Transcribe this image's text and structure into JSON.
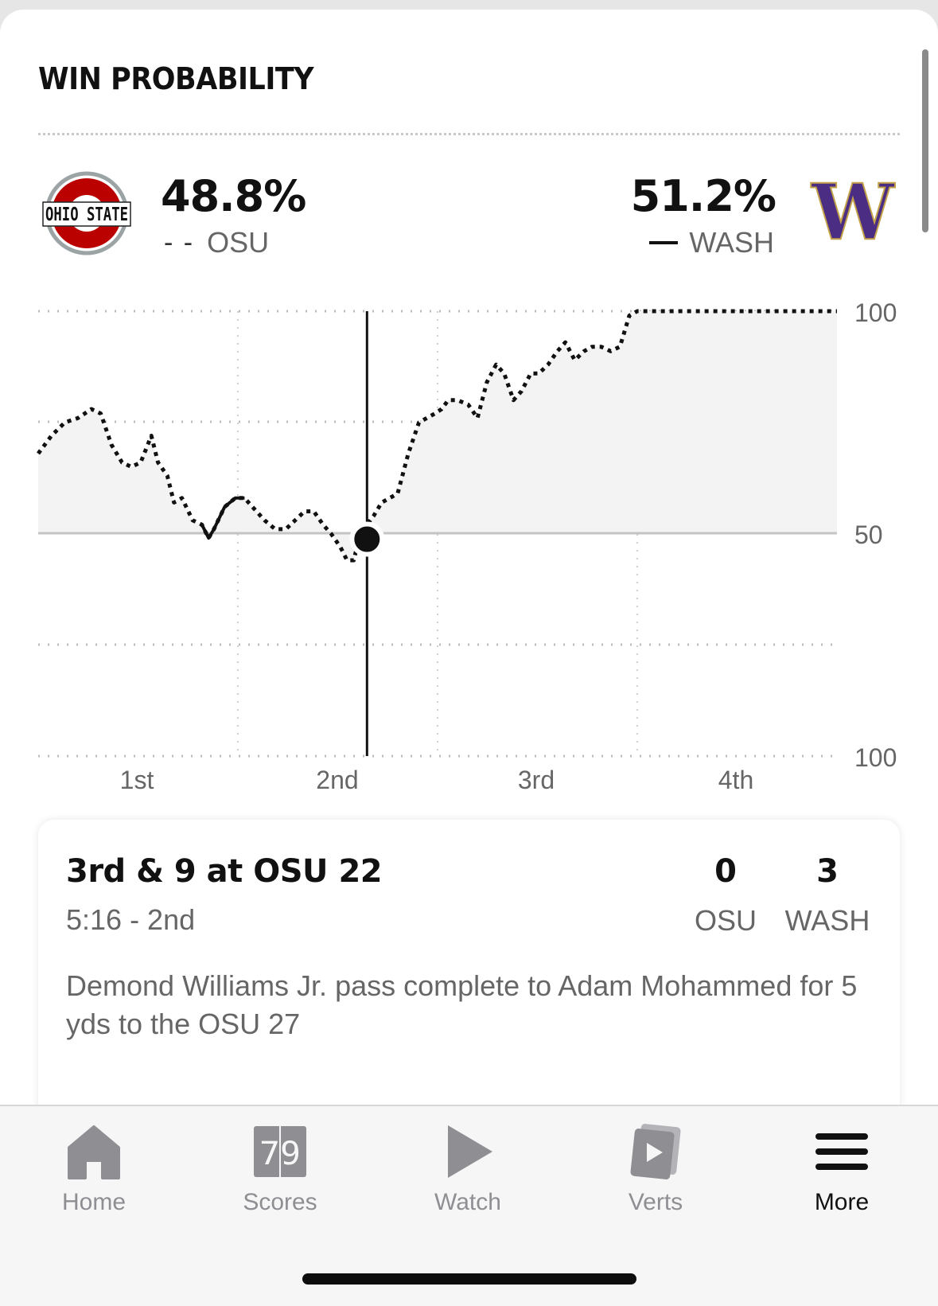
{
  "section": {
    "title": "WIN PROBABILITY"
  },
  "teams": {
    "home": {
      "abbr": "OSU",
      "pct": "48.8%",
      "line_style": "dashed",
      "logo_text": "OHIO STATE",
      "color": "#bb0000"
    },
    "away": {
      "abbr": "WASH",
      "pct": "51.2%",
      "line_style": "solid",
      "logo_text": "W",
      "color": "#4b2e83"
    }
  },
  "chart_data": {
    "type": "line",
    "title": "",
    "xlabel": "",
    "ylabel": "",
    "x_ticks": [
      "1st",
      "2nd",
      "3rd",
      "4th"
    ],
    "y_ticks": [
      "100",
      "50",
      "100"
    ],
    "ylim": [
      0,
      100
    ],
    "xlim": [
      0,
      60
    ],
    "midline": 50,
    "grid": true,
    "x_unit": "game minutes",
    "series": [
      {
        "y_unit": "percent",
        "x": [
          0,
          1,
          2,
          3,
          4,
          4.7,
          5.5,
          6.3,
          7,
          7.7,
          8.5,
          9,
          9.7,
          10.2,
          10.8,
          11.6,
          12.3,
          12.8,
          13.2,
          14,
          14.8,
          15.5,
          16.1,
          17,
          17.8,
          18.6,
          19.3,
          20,
          20.7,
          21.4,
          22,
          22.7,
          23.2,
          23.7,
          24.2,
          24.7,
          25.2,
          25.8,
          26.4,
          27,
          27.8,
          28.6,
          29.2,
          29.8,
          30.3,
          30.8,
          31.5,
          32.3,
          33,
          33.7,
          34.4,
          35,
          35.7,
          36.3,
          37,
          37.6,
          38.3,
          39,
          39.6,
          40.3,
          41,
          41.6,
          42.3,
          43,
          43.7,
          44.4,
          45,
          45.8,
          46.6,
          47.4,
          48.2,
          49,
          49.7,
          50.3,
          51,
          51.8,
          52.6,
          53.3,
          54,
          55,
          56,
          57,
          58,
          59,
          60
        ],
        "y": [
          68,
          72,
          75,
          76,
          78,
          77,
          70,
          66,
          65,
          66,
          72,
          66,
          63,
          57,
          58,
          53,
          52,
          49,
          51,
          56,
          58,
          58,
          56,
          53,
          51,
          51,
          53,
          55,
          55,
          52,
          50,
          47,
          44,
          44,
          50,
          52,
          54,
          57,
          58,
          59,
          68,
          75,
          76,
          77,
          78,
          80,
          80,
          79,
          76,
          84,
          88,
          86,
          80,
          82,
          86,
          86,
          88,
          91,
          93,
          89,
          91,
          92,
          92,
          91,
          92,
          99,
          100,
          100,
          100,
          100,
          100,
          100,
          100,
          100,
          100,
          100,
          100,
          100,
          100,
          100,
          100,
          100,
          100,
          100,
          100
        ]
      }
    ],
    "marker": {
      "x": 24.7,
      "y": 50,
      "label": ""
    }
  },
  "play": {
    "title": "3rd & 9 at OSU 22",
    "time": "5:16 - 2nd",
    "desc": "Demond Williams Jr. pass complete to Adam Mohammed for 5 yds to the OSU 27",
    "scores": [
      {
        "value": "0",
        "team": "OSU"
      },
      {
        "value": "3",
        "team": "WASH"
      }
    ]
  },
  "tabbar": {
    "items": [
      {
        "label": "Home",
        "icon": "home-icon"
      },
      {
        "label": "Scores",
        "icon": "scores-icon"
      },
      {
        "label": "Watch",
        "icon": "play-icon"
      },
      {
        "label": "Verts",
        "icon": "verts-icon"
      },
      {
        "label": "More",
        "icon": "menu-icon",
        "active": true
      }
    ],
    "scores_icon_text": "79"
  },
  "colors": {
    "osu_red": "#bb0000",
    "wash_purple": "#4b2e83",
    "gold": "#c5a34a"
  }
}
